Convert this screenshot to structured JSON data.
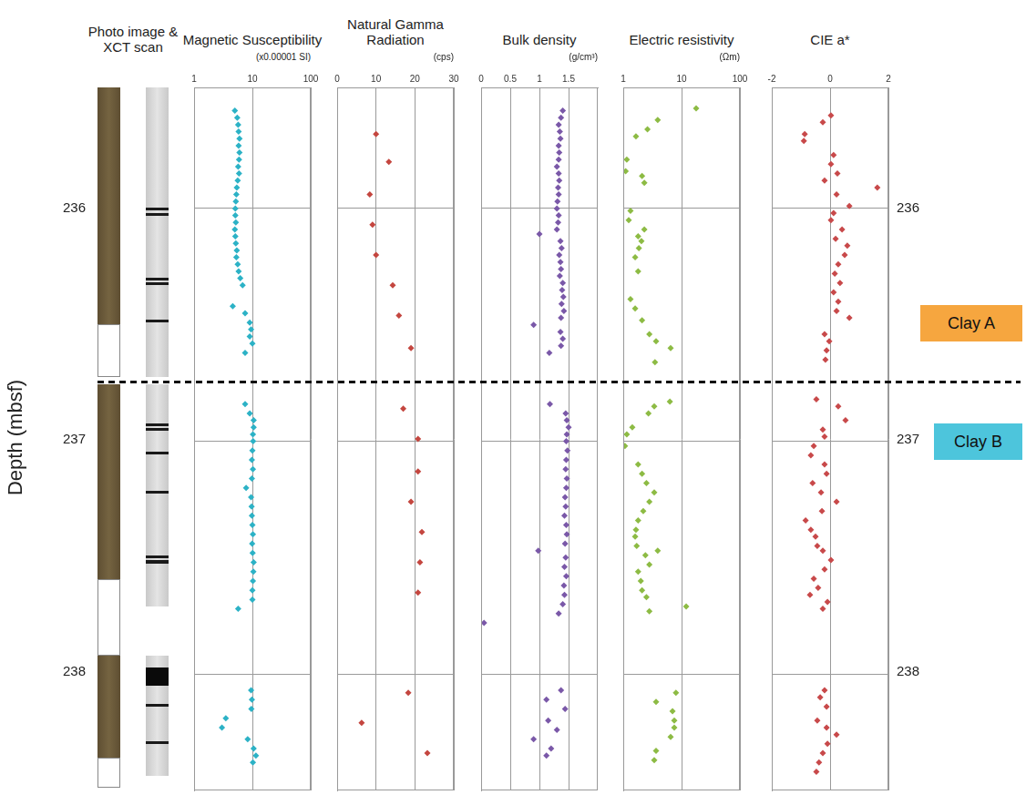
{
  "photo_title": "Photo image & XCT scan",
  "depth_label": "Depth (mbsf)",
  "boundary_depth": 236.75,
  "annotations": [
    {
      "text": "Clay A",
      "color": "#f6a63f"
    },
    {
      "text": "Clay B",
      "color": "#4dc5dc"
    }
  ],
  "chart_data": [
    {
      "type": "scatter",
      "title": "Magnetic Susceptibility",
      "unit": "(x0.00001 SI)",
      "color": "#2cb2c6",
      "marker": "diamond",
      "log": "x",
      "grid": true,
      "xlim": [
        1,
        100
      ],
      "xticks": [
        1,
        10,
        100
      ],
      "ylim": [
        235.48,
        238.5
      ],
      "yticks": [
        236,
        237,
        238
      ],
      "x": [
        5.0,
        5.5,
        5.7,
        5.8,
        6.0,
        5.8,
        6.0,
        5.9,
        5.7,
        5.9,
        5.6,
        5.4,
        5.3,
        5.2,
        5.1,
        5.1,
        5.2,
        5.0,
        5.1,
        5.2,
        5.4,
        5.3,
        5.6,
        5.8,
        6.2,
        6.8,
        4.6,
        7.5,
        9.0,
        9.5,
        9.0,
        10.0,
        7.5,
        7.5,
        9.0,
        10.5,
        10.5,
        10.2,
        10.3,
        10.0,
        9.8,
        10.2,
        9.8,
        7.8,
        9.5,
        9.7,
        9.8,
        10.0,
        10.2,
        9.9,
        10.1,
        10.5,
        10.4,
        10.2,
        10.0,
        10.0,
        5.7,
        9.5,
        9.8,
        9.6,
        3.5,
        3.0,
        8.3,
        10.5,
        11.5,
        10.2
      ],
      "y": [
        235.58,
        235.61,
        235.64,
        235.67,
        235.7,
        235.73,
        235.76,
        235.79,
        235.82,
        235.85,
        235.88,
        235.91,
        235.94,
        235.97,
        236.0,
        236.03,
        236.06,
        236.09,
        236.12,
        236.15,
        236.18,
        236.21,
        236.24,
        236.27,
        236.3,
        236.33,
        236.42,
        236.45,
        236.49,
        236.52,
        236.55,
        236.58,
        236.62,
        236.84,
        236.88,
        236.91,
        236.94,
        236.97,
        237.0,
        237.04,
        237.08,
        237.12,
        237.16,
        237.2,
        237.24,
        237.28,
        237.32,
        237.36,
        237.4,
        237.44,
        237.48,
        237.52,
        237.56,
        237.6,
        237.64,
        237.68,
        237.72,
        238.07,
        238.11,
        238.15,
        238.19,
        238.23,
        238.28,
        238.32,
        238.35,
        238.38
      ]
    },
    {
      "type": "scatter",
      "title": "Natural Gamma Radiation",
      "unit": "(cps)",
      "color": "#c4463f",
      "marker": "diamond",
      "grid": true,
      "xlim": [
        0,
        30
      ],
      "xticks": [
        0,
        10,
        20,
        30
      ],
      "ylim": [
        235.48,
        238.5
      ],
      "yticks": [
        236,
        237,
        238
      ],
      "x": [
        10,
        13.3,
        8.4,
        9.1,
        10,
        14.3,
        15.9,
        19,
        17,
        20.8,
        20.8,
        19,
        21.8,
        21.3,
        20.8,
        18.3,
        6.3,
        23.2
      ],
      "y": [
        235.68,
        235.8,
        235.94,
        236.07,
        236.2,
        236.33,
        236.46,
        236.6,
        236.86,
        236.99,
        237.13,
        237.26,
        237.39,
        237.52,
        237.65,
        238.08,
        238.21,
        238.34
      ]
    },
    {
      "type": "scatter",
      "title": "Bulk density",
      "unit": "(g/cm³)",
      "color": "#7a58a8",
      "marker": "diamond",
      "grid": true,
      "xlim": [
        0,
        2
      ],
      "xticks": [
        0,
        0.5,
        1,
        1.5
      ],
      "ylim": [
        235.48,
        238.5
      ],
      "yticks": [
        236,
        237,
        238
      ],
      "x": [
        1.4,
        1.37,
        1.33,
        1.35,
        1.36,
        1.33,
        1.34,
        1.33,
        1.3,
        1.33,
        1.34,
        1.32,
        1.33,
        1.31,
        1.3,
        1.33,
        1.32,
        1.3,
        1.0,
        1.36,
        1.38,
        1.34,
        1.36,
        1.37,
        1.35,
        1.4,
        1.39,
        1.41,
        1.38,
        1.42,
        1.37,
        0.9,
        1.36,
        1.4,
        1.37,
        1.17,
        1.18,
        1.45,
        1.47,
        1.5,
        1.47,
        1.46,
        1.48,
        1.46,
        1.45,
        1.47,
        1.46,
        1.44,
        1.45,
        1.43,
        1.46,
        1.47,
        1.44,
        0.98,
        1.45,
        1.43,
        1.46,
        1.42,
        1.43,
        1.4,
        1.33,
        0.05,
        1.37,
        1.12,
        1.44,
        1.15,
        1.3,
        0.9,
        1.2,
        1.12
      ],
      "y": [
        235.58,
        235.61,
        235.64,
        235.67,
        235.7,
        235.73,
        235.76,
        235.79,
        235.82,
        235.85,
        235.88,
        235.91,
        235.94,
        235.97,
        236.0,
        236.03,
        236.06,
        236.09,
        236.11,
        236.14,
        236.17,
        236.2,
        236.23,
        236.26,
        236.29,
        236.32,
        236.35,
        236.38,
        236.41,
        236.44,
        236.47,
        236.5,
        236.53,
        236.56,
        236.59,
        236.62,
        236.84,
        236.88,
        236.91,
        236.94,
        236.97,
        237.0,
        237.04,
        237.08,
        237.12,
        237.16,
        237.2,
        237.24,
        237.28,
        237.32,
        237.36,
        237.4,
        237.44,
        237.47,
        237.5,
        237.54,
        237.58,
        237.62,
        237.66,
        237.7,
        237.74,
        237.78,
        238.07,
        238.11,
        238.15,
        238.2,
        238.24,
        238.28,
        238.32,
        238.35
      ]
    },
    {
      "type": "scatter",
      "title": "Electric resistivity",
      "unit": "(Ωm)",
      "color": "#8dbb44",
      "marker": "diamond",
      "log": "x",
      "grid": true,
      "xlim": [
        1,
        100
      ],
      "xticks": [
        1,
        10,
        100
      ],
      "ylim": [
        235.48,
        238.5
      ],
      "yticks": [
        236,
        237,
        238
      ],
      "x": [
        17.8,
        3.9,
        2.6,
        1.65,
        1.15,
        1.1,
        2.1,
        2.3,
        1.33,
        1.24,
        2.3,
        1.8,
        2.05,
        1.85,
        1.6,
        1.8,
        1.33,
        1.6,
        2.1,
        2.8,
        3.65,
        6.5,
        3.5,
        6.3,
        3.4,
        2.7,
        1.43,
        1.15,
        1.07,
        1.8,
        2.1,
        2.5,
        3.4,
        2.8,
        2.2,
        1.8,
        1.65,
        1.6,
        1.7,
        3.9,
        2.4,
        2.8,
        1.8,
        2.0,
        2.1,
        2.5,
        12,
        2.8,
        8.0,
        3.65,
        7.0,
        7.5,
        7.5,
        6.5,
        3.65,
        3.4
      ],
      "y": [
        235.57,
        235.62,
        235.66,
        235.69,
        235.79,
        235.84,
        235.86,
        235.89,
        236.01,
        236.05,
        236.09,
        236.12,
        236.14,
        236.17,
        236.21,
        236.27,
        236.39,
        236.43,
        236.48,
        236.54,
        236.57,
        236.6,
        236.66,
        236.83,
        236.85,
        236.88,
        236.94,
        236.97,
        237.02,
        237.1,
        237.14,
        237.18,
        237.22,
        237.26,
        237.3,
        237.34,
        237.38,
        237.41,
        237.45,
        237.47,
        237.49,
        237.53,
        237.56,
        237.6,
        237.64,
        237.67,
        237.71,
        237.73,
        238.08,
        238.12,
        238.16,
        238.2,
        238.23,
        238.27,
        238.33,
        238.37
      ]
    },
    {
      "type": "scatter",
      "title": "CIE a*",
      "color": "#c8494a",
      "marker": "diamond",
      "grid": true,
      "xlim": [
        -2,
        2
      ],
      "xticks": [
        -2,
        0,
        2
      ],
      "ylim": [
        235.48,
        238.5
      ],
      "yticks": [
        236,
        237,
        238
      ],
      "x": [
        0.03,
        -0.25,
        -0.87,
        -0.9,
        0.12,
        0.03,
        0.25,
        -0.19,
        1.62,
        0.22,
        0.66,
        0.12,
        0.03,
        0.41,
        0.19,
        0.59,
        0.5,
        0.28,
        0.16,
        0.34,
        0.12,
        0.28,
        0.22,
        0.66,
        -0.19,
        -0.03,
        -0.12,
        -0.16,
        -0.47,
        0.28,
        0.53,
        -0.25,
        -0.19,
        -0.56,
        -0.66,
        -0.19,
        -0.12,
        -0.6,
        -0.31,
        0.22,
        -0.28,
        -0.84,
        -0.66,
        -0.5,
        -0.44,
        -0.25,
        0.03,
        -0.19,
        -0.56,
        -0.41,
        -0.69,
        -0.09,
        -0.25,
        -0.19,
        -0.34,
        -0.12,
        -0.44,
        -0.12,
        0.22,
        -0.09,
        -0.25,
        -0.38,
        -0.47
      ],
      "y": [
        235.6,
        235.63,
        235.68,
        235.71,
        235.77,
        235.81,
        235.85,
        235.88,
        235.91,
        235.94,
        235.99,
        236.02,
        236.05,
        236.09,
        236.13,
        236.16,
        236.2,
        236.24,
        236.28,
        236.32,
        236.36,
        236.4,
        236.44,
        236.47,
        236.54,
        236.57,
        236.61,
        236.65,
        236.82,
        236.85,
        236.91,
        236.95,
        236.98,
        237.02,
        237.06,
        237.1,
        237.14,
        237.18,
        237.22,
        237.26,
        237.3,
        237.34,
        237.38,
        237.41,
        237.45,
        237.47,
        237.51,
        237.55,
        237.59,
        237.63,
        237.66,
        237.69,
        237.72,
        238.07,
        238.1,
        238.14,
        238.2,
        238.23,
        238.26,
        238.3,
        238.34,
        238.38,
        238.42
      ]
    }
  ]
}
